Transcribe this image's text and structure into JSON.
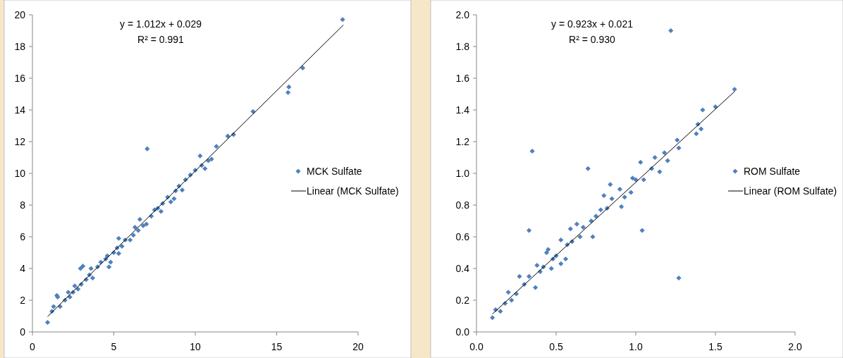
{
  "chart_data": [
    {
      "type": "scatter",
      "xlim": [
        0,
        20
      ],
      "ylim": [
        0,
        20
      ],
      "xticks": [
        0,
        5,
        10,
        15,
        20
      ],
      "yticks": [
        0,
        2,
        4,
        6,
        8,
        10,
        12,
        14,
        16,
        18,
        20
      ],
      "grid": false,
      "legend": "right",
      "annotations": [
        "y = 1.012x + 0.029",
        "R² = 0.991"
      ],
      "series": [
        {
          "name": "MCK Sulfate",
          "marker": "diamond",
          "color": "#4f81bd",
          "x": [
            0.93,
            1.2,
            1.3,
            1.5,
            1.55,
            1.7,
            2,
            2.2,
            2.3,
            2.5,
            2.6,
            2.8,
            2.95,
            3.1,
            3,
            3.3,
            3.5,
            3.6,
            3.7,
            4,
            4.2,
            4.5,
            4.7,
            4.8,
            4.6,
            5,
            5.2,
            5.3,
            5.3,
            5.5,
            5.7,
            6,
            6.2,
            6.3,
            6.5,
            6.6,
            6.8,
            7,
            7.05,
            7.3,
            7.5,
            7.7,
            7.9,
            8,
            8.3,
            8.5,
            8.7,
            8.8,
            9,
            9.2,
            9.4,
            9.7,
            10,
            10.3,
            10.4,
            10.6,
            10.8,
            11,
            11.3,
            12,
            12.35,
            13.55,
            15.7,
            15.75,
            16.6,
            19.05
          ],
          "values": [
            0.6,
            1.3,
            1.6,
            2.3,
            2.2,
            1.6,
            2,
            2.5,
            2.2,
            2.5,
            2.9,
            2.7,
            4.0,
            4.15,
            3,
            3.3,
            3.6,
            4.0,
            3.4,
            4.1,
            4.4,
            4.6,
            4.1,
            4.4,
            4.8,
            5,
            5.3,
            5.9,
            4.95,
            5.4,
            5.8,
            5.8,
            6.1,
            6.6,
            6.4,
            7.1,
            6.7,
            6.8,
            11.55,
            7.3,
            7.7,
            7.8,
            7.6,
            8.1,
            8.5,
            8.2,
            8.4,
            8.9,
            9.2,
            8.95,
            9.6,
            9.9,
            10.2,
            11.1,
            10.5,
            10.3,
            10.8,
            10.9,
            11.7,
            12.35,
            12.45,
            13.9,
            15.1,
            15.45,
            16.65,
            19.7
          ]
        },
        {
          "name": "Linear (MCK Sulfate)",
          "type": "line",
          "color": "#000000",
          "line_style": "solid",
          "x": [
            0.93,
            19.1
          ],
          "values": [
            0.97,
            19.36
          ]
        }
      ]
    },
    {
      "type": "scatter",
      "xlim": [
        0,
        2
      ],
      "ylim": [
        0,
        2
      ],
      "xticks": [
        {
          "value": 0,
          "label": "0.0"
        },
        0.5,
        {
          "value": 1,
          "label": "1.0"
        },
        1.5,
        {
          "value": 2,
          "label": "2.0"
        }
      ],
      "yticks": [
        {
          "value": 0,
          "label": "0.0"
        },
        0.2,
        0.4,
        0.6,
        0.8,
        {
          "value": 1,
          "label": "1.0"
        },
        1.2,
        1.4,
        1.6,
        1.8,
        {
          "value": 2,
          "label": "2.0"
        }
      ],
      "grid": false,
      "legend": "right",
      "annotations": [
        "y = 0.923x + 0.021",
        "R² = 0.930"
      ],
      "series": [
        {
          "name": "ROM Sulfate",
          "marker": "diamond",
          "color": "#4f81bd",
          "x": [
            0.1,
            0.12,
            0.15,
            0.18,
            0.2,
            0.22,
            0.25,
            0.27,
            0.3,
            0.33,
            0.33,
            0.35,
            0.37,
            0.38,
            0.4,
            0.42,
            0.44,
            0.45,
            0.47,
            0.48,
            0.5,
            0.53,
            0.53,
            0.56,
            0.57,
            0.59,
            0.6,
            0.63,
            0.65,
            0.67,
            0.7,
            0.72,
            0.73,
            0.75,
            0.78,
            0.8,
            0.82,
            0.84,
            0.85,
            0.9,
            0.91,
            0.93,
            0.97,
            0.98,
            1.0,
            1.03,
            1.04,
            1.05,
            1.1,
            1.12,
            1.15,
            1.18,
            1.2,
            1.22,
            1.26,
            1.27,
            1.27,
            1.38,
            1.39,
            1.41,
            1.42,
            1.5,
            1.62
          ],
          "values": [
            0.09,
            0.14,
            0.13,
            0.18,
            0.25,
            0.2,
            0.24,
            0.35,
            0.3,
            0.64,
            0.35,
            1.14,
            0.28,
            0.42,
            0.38,
            0.41,
            0.5,
            0.52,
            0.4,
            0.46,
            0.48,
            0.43,
            0.58,
            0.46,
            0.55,
            0.65,
            0.57,
            0.68,
            0.6,
            0.66,
            1.03,
            0.7,
            0.6,
            0.73,
            0.77,
            0.86,
            0.78,
            0.93,
            0.84,
            0.9,
            0.79,
            0.85,
            0.88,
            0.97,
            0.96,
            1.07,
            0.64,
            0.96,
            1.03,
            1.1,
            1.01,
            1.13,
            1.08,
            1.9,
            1.21,
            0.34,
            1.16,
            1.25,
            1.31,
            1.28,
            1.4,
            1.42,
            1.53
          ]
        },
        {
          "name": "Linear (ROM Sulfate)",
          "type": "line",
          "color": "#000000",
          "line_style": "solid",
          "x": [
            0.1,
            1.62
          ],
          "values": [
            0.113,
            1.516
          ]
        }
      ]
    }
  ]
}
